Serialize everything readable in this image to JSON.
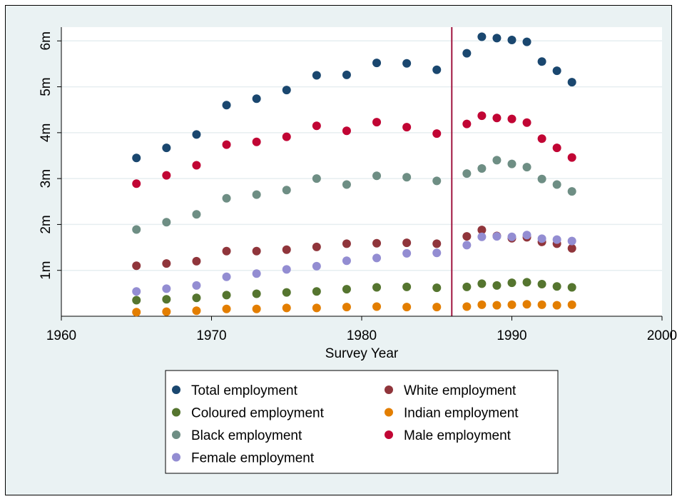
{
  "chart_data": {
    "type": "scatter",
    "title": "",
    "xlabel": "Survey Year",
    "ylabel": "",
    "xlim": [
      1960,
      2000
    ],
    "ylim": [
      0,
      6300000
    ],
    "x_ticks": [
      1960,
      1970,
      1980,
      1990,
      2000
    ],
    "x_tick_labels": [
      "1960",
      "1970",
      "1980",
      "1990",
      "2000"
    ],
    "y_ticks": [
      1000000,
      2000000,
      3000000,
      4000000,
      5000000,
      6000000
    ],
    "y_tick_labels": [
      "1m",
      "2m",
      "3m",
      "4m",
      "5m",
      "6m"
    ],
    "grid": "horizontal",
    "legend_position": "bottom",
    "reference_line": {
      "x": 1986,
      "color": "#a0153e"
    },
    "x": [
      1965,
      1967,
      1969,
      1971,
      1973,
      1975,
      1977,
      1979,
      1981,
      1983,
      1985,
      1987,
      1988,
      1989,
      1990,
      1991,
      1992,
      1993,
      1994
    ],
    "series": [
      {
        "name": "Total employment",
        "color": "#1a476f",
        "values": [
          3450000,
          3670000,
          3960000,
          4600000,
          4740000,
          4930000,
          5250000,
          5260000,
          5520000,
          5510000,
          5370000,
          5730000,
          6090000,
          6060000,
          6020000,
          5980000,
          5550000,
          5350000,
          5100000
        ]
      },
      {
        "name": "White employment",
        "color": "#90353b",
        "values": [
          1100000,
          1150000,
          1200000,
          1420000,
          1420000,
          1450000,
          1510000,
          1580000,
          1590000,
          1600000,
          1580000,
          1740000,
          1880000,
          1750000,
          1700000,
          1720000,
          1620000,
          1580000,
          1480000
        ]
      },
      {
        "name": "Coloured employment",
        "color": "#55752f",
        "values": [
          350000,
          370000,
          400000,
          460000,
          490000,
          520000,
          540000,
          590000,
          630000,
          640000,
          620000,
          640000,
          710000,
          670000,
          730000,
          740000,
          700000,
          650000,
          630000
        ]
      },
      {
        "name": "Indian employment",
        "color": "#e37e00",
        "values": [
          90000,
          100000,
          120000,
          160000,
          160000,
          180000,
          180000,
          200000,
          210000,
          200000,
          200000,
          210000,
          250000,
          240000,
          250000,
          260000,
          250000,
          240000,
          250000
        ]
      },
      {
        "name": "Black employment",
        "color": "#6e8e84",
        "values": [
          1890000,
          2050000,
          2220000,
          2570000,
          2650000,
          2750000,
          3000000,
          2870000,
          3060000,
          3030000,
          2950000,
          3110000,
          3220000,
          3400000,
          3320000,
          3250000,
          2990000,
          2870000,
          2720000
        ]
      },
      {
        "name": "Male employment",
        "color": "#c10534",
        "values": [
          2890000,
          3070000,
          3290000,
          3740000,
          3800000,
          3910000,
          4150000,
          4040000,
          4230000,
          4120000,
          3980000,
          4190000,
          4370000,
          4320000,
          4300000,
          4220000,
          3870000,
          3670000,
          3460000
        ]
      },
      {
        "name": "Female employment",
        "color": "#938dd2",
        "values": [
          540000,
          600000,
          670000,
          860000,
          930000,
          1020000,
          1090000,
          1210000,
          1270000,
          1370000,
          1380000,
          1550000,
          1730000,
          1740000,
          1730000,
          1770000,
          1690000,
          1670000,
          1640000
        ]
      }
    ]
  }
}
